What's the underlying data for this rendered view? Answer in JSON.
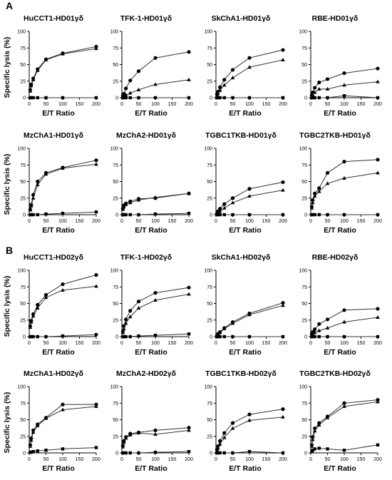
{
  "figure": {
    "panel_labels": [
      "A",
      "B"
    ],
    "x_axis_label": "E/T Ratio",
    "y_axis_label": "Specific lysis (%)"
  },
  "chart_data": [
    {
      "type": "line",
      "title": "HuCCT1-HD01γδ",
      "xlabel": "E/T Ratio",
      "ylabel": "Specific lysis (%)",
      "xlim": [
        0,
        200
      ],
      "ylim": [
        0,
        100
      ],
      "xticks": [
        0,
        50,
        100,
        150,
        200
      ],
      "yticks": [
        0,
        25,
        50,
        75,
        100
      ],
      "x": [
        3,
        6,
        12,
        25,
        50,
        100,
        200
      ],
      "series": [
        {
          "marker": "circle",
          "values": [
            12,
            20,
            29,
            43,
            58,
            67,
            77
          ]
        },
        {
          "marker": "triangle",
          "values": [
            10,
            18,
            27,
            41,
            57,
            66,
            74
          ]
        },
        {
          "marker": "square",
          "values": [
            0,
            0,
            0,
            0,
            0,
            0,
            0
          ]
        }
      ]
    },
    {
      "type": "line",
      "title": "TFK-1-HD01γδ",
      "xlabel": "E/T Ratio",
      "ylabel": "",
      "xlim": [
        0,
        200
      ],
      "ylim": [
        0,
        100
      ],
      "xticks": [
        0,
        50,
        100,
        150,
        200
      ],
      "yticks": [
        0,
        25,
        50,
        75,
        100
      ],
      "x": [
        3,
        6,
        12,
        25,
        50,
        100,
        200
      ],
      "series": [
        {
          "marker": "circle",
          "values": [
            3,
            6,
            14,
            26,
            40,
            60,
            69
          ]
        },
        {
          "marker": "triangle",
          "values": [
            1,
            2,
            4,
            7,
            12,
            20,
            27
          ]
        },
        {
          "marker": "square",
          "values": [
            0,
            0,
            0,
            0,
            0,
            0,
            0
          ]
        }
      ]
    },
    {
      "type": "line",
      "title": "SkChA1-HD01γδ",
      "xlabel": "E/T Ratio",
      "ylabel": "",
      "xlim": [
        0,
        200
      ],
      "ylim": [
        0,
        100
      ],
      "xticks": [
        0,
        50,
        100,
        150,
        200
      ],
      "yticks": [
        0,
        25,
        50,
        75,
        100
      ],
      "x": [
        3,
        6,
        12,
        25,
        50,
        100,
        200
      ],
      "series": [
        {
          "marker": "circle",
          "values": [
            5,
            9,
            16,
            27,
            42,
            60,
            72
          ]
        },
        {
          "marker": "triangle",
          "values": [
            3,
            6,
            11,
            19,
            30,
            46,
            57
          ]
        },
        {
          "marker": "square",
          "values": [
            0,
            0,
            0,
            0,
            0,
            0,
            0
          ]
        }
      ]
    },
    {
      "type": "line",
      "title": "RBE-HD01γδ",
      "xlabel": "E/T Ratio",
      "ylabel": "",
      "xlim": [
        0,
        200
      ],
      "ylim": [
        0,
        100
      ],
      "xticks": [
        0,
        50,
        100,
        150,
        200
      ],
      "yticks": [
        0,
        25,
        50,
        75,
        100
      ],
      "x": [
        3,
        6,
        12,
        25,
        50,
        100,
        200
      ],
      "series": [
        {
          "marker": "circle",
          "values": [
            4,
            8,
            15,
            23,
            28,
            37,
            44
          ]
        },
        {
          "marker": "triangle",
          "values": [
            2,
            4,
            8,
            13,
            13,
            19,
            24
          ]
        },
        {
          "marker": "square",
          "values": [
            0,
            0,
            0,
            0,
            0,
            3,
            0
          ]
        }
      ]
    },
    {
      "type": "line",
      "title": "MzChA1-HD01γδ",
      "xlabel": "E/T Ratio",
      "ylabel": "Specific lysis (%)",
      "xlim": [
        0,
        200
      ],
      "ylim": [
        0,
        100
      ],
      "xticks": [
        0,
        50,
        100,
        150,
        200
      ],
      "yticks": [
        0,
        25,
        50,
        75,
        100
      ],
      "x": [
        3,
        6,
        12,
        25,
        50,
        100,
        200
      ],
      "series": [
        {
          "marker": "circle",
          "values": [
            8,
            15,
            30,
            50,
            63,
            71,
            82
          ]
        },
        {
          "marker": "triangle",
          "values": [
            7,
            13,
            25,
            45,
            61,
            70,
            76
          ]
        },
        {
          "marker": "square",
          "values": [
            0,
            0,
            0,
            0,
            1,
            2,
            4
          ]
        }
      ]
    },
    {
      "type": "line",
      "title": "MzChA2-HD01γδ",
      "xlabel": "E/T Ratio",
      "ylabel": "",
      "xlim": [
        0,
        200
      ],
      "ylim": [
        0,
        100
      ],
      "xticks": [
        0,
        50,
        100,
        150,
        200
      ],
      "yticks": [
        0,
        25,
        50,
        75,
        100
      ],
      "x": [
        3,
        6,
        12,
        25,
        50,
        100,
        200
      ],
      "series": [
        {
          "marker": "circle",
          "values": [
            9,
            14,
            17,
            20,
            24,
            25,
            32
          ]
        },
        {
          "marker": "triangle",
          "values": [
            8,
            12,
            15,
            18,
            22,
            26,
            32
          ]
        },
        {
          "marker": "square",
          "values": [
            0,
            0,
            0,
            0,
            0,
            1,
            2
          ]
        }
      ]
    },
    {
      "type": "line",
      "title": "TGBC1TKB-HD01γδ",
      "xlabel": "E/T Ratio",
      "ylabel": "",
      "xlim": [
        0,
        200
      ],
      "ylim": [
        0,
        100
      ],
      "xticks": [
        0,
        50,
        100,
        150,
        200
      ],
      "yticks": [
        0,
        25,
        50,
        75,
        100
      ],
      "x": [
        3,
        6,
        12,
        25,
        50,
        100,
        200
      ],
      "series": [
        {
          "marker": "circle",
          "values": [
            2,
            5,
            9,
            16,
            25,
            39,
            49
          ]
        },
        {
          "marker": "triangle",
          "values": [
            1,
            3,
            5,
            10,
            18,
            28,
            37
          ]
        },
        {
          "marker": "square",
          "values": [
            0,
            0,
            0,
            0,
            0,
            0,
            0
          ]
        }
      ]
    },
    {
      "type": "line",
      "title": "TGBC2TKB-HD01γδ",
      "xlabel": "E/T Ratio",
      "ylabel": "",
      "xlim": [
        0,
        200
      ],
      "ylim": [
        0,
        100
      ],
      "xticks": [
        0,
        50,
        100,
        150,
        200
      ],
      "yticks": [
        0,
        25,
        50,
        75,
        100
      ],
      "x": [
        3,
        6,
        12,
        25,
        50,
        100,
        200
      ],
      "series": [
        {
          "marker": "circle",
          "values": [
            12,
            22,
            32,
            40,
            63,
            80,
            83
          ]
        },
        {
          "marker": "triangle",
          "values": [
            10,
            18,
            28,
            35,
            47,
            55,
            63
          ]
        },
        {
          "marker": "square",
          "values": [
            0,
            0,
            0,
            0,
            0,
            0,
            0
          ]
        }
      ]
    },
    {
      "type": "line",
      "title": "HuCCT1-HD02γδ",
      "xlabel": "E/T Ratio",
      "ylabel": "Specific lysis (%)",
      "xlim": [
        0,
        200
      ],
      "ylim": [
        0,
        100
      ],
      "xticks": [
        0,
        50,
        100,
        150,
        200
      ],
      "yticks": [
        0,
        25,
        50,
        75,
        100
      ],
      "x": [
        3,
        6,
        12,
        25,
        50,
        100,
        200
      ],
      "series": [
        {
          "marker": "circle",
          "values": [
            16,
            24,
            34,
            48,
            63,
            79,
            93
          ]
        },
        {
          "marker": "triangle",
          "values": [
            14,
            22,
            31,
            43,
            59,
            70,
            76
          ]
        },
        {
          "marker": "square",
          "values": [
            0,
            0,
            0,
            0,
            0,
            1,
            3
          ]
        }
      ]
    },
    {
      "type": "line",
      "title": "TFK-1-HD02γδ",
      "xlabel": "E/T Ratio",
      "ylabel": "",
      "xlim": [
        0,
        200
      ],
      "ylim": [
        0,
        100
      ],
      "xticks": [
        0,
        50,
        100,
        150,
        200
      ],
      "yticks": [
        0,
        25,
        50,
        75,
        100
      ],
      "x": [
        3,
        6,
        12,
        25,
        50,
        100,
        200
      ],
      "series": [
        {
          "marker": "circle",
          "values": [
            8,
            16,
            26,
            39,
            53,
            66,
            74
          ]
        },
        {
          "marker": "triangle",
          "values": [
            6,
            12,
            20,
            30,
            43,
            55,
            64
          ]
        },
        {
          "marker": "square",
          "values": [
            0,
            0,
            0,
            0,
            1,
            2,
            4
          ]
        }
      ]
    },
    {
      "type": "line",
      "title": "SkChA1-HD02γδ",
      "xlabel": "E/T Ratio",
      "ylabel": "",
      "xlim": [
        0,
        200
      ],
      "ylim": [
        0,
        100
      ],
      "xticks": [
        0,
        50,
        100,
        150,
        200
      ],
      "yticks": [
        0,
        25,
        50,
        75,
        100
      ],
      "x": [
        3,
        6,
        12,
        25,
        50,
        100,
        200
      ],
      "series": [
        {
          "marker": "circle",
          "values": [
            2,
            4,
            7,
            13,
            22,
            35,
            51
          ]
        },
        {
          "marker": "triangle",
          "values": [
            1,
            3,
            6,
            12,
            20,
            33,
            47
          ]
        },
        {
          "marker": "square",
          "values": [
            0,
            0,
            0,
            0,
            0,
            0,
            0
          ]
        }
      ]
    },
    {
      "type": "line",
      "title": "RBE-HD02γδ",
      "xlabel": "E/T Ratio",
      "ylabel": "",
      "xlim": [
        0,
        200
      ],
      "ylim": [
        0,
        100
      ],
      "xticks": [
        0,
        50,
        100,
        150,
        200
      ],
      "yticks": [
        0,
        25,
        50,
        75,
        100
      ],
      "x": [
        3,
        6,
        12,
        25,
        50,
        100,
        200
      ],
      "series": [
        {
          "marker": "circle",
          "values": [
            4,
            7,
            11,
            19,
            26,
            40,
            42
          ]
        },
        {
          "marker": "triangle",
          "values": [
            2,
            4,
            6,
            9,
            13,
            22,
            29
          ]
        },
        {
          "marker": "square",
          "values": [
            0,
            0,
            0,
            0,
            0,
            0,
            0
          ]
        }
      ]
    },
    {
      "type": "line",
      "title": "MzChA1-HD02γδ",
      "xlabel": "E/T Ratio",
      "ylabel": "Specific lysis (%)",
      "xlim": [
        0,
        200
      ],
      "ylim": [
        0,
        100
      ],
      "xticks": [
        0,
        50,
        100,
        150,
        200
      ],
      "yticks": [
        0,
        25,
        50,
        75,
        100
      ],
      "x": [
        3,
        6,
        12,
        25,
        50,
        100,
        200
      ],
      "series": [
        {
          "marker": "circle",
          "values": [
            12,
            22,
            34,
            43,
            53,
            73,
            73
          ]
        },
        {
          "marker": "triangle",
          "values": [
            10,
            19,
            31,
            41,
            52,
            65,
            70
          ]
        },
        {
          "marker": "square",
          "values": [
            1,
            1,
            2,
            3,
            4,
            6,
            8
          ]
        }
      ]
    },
    {
      "type": "line",
      "title": "MzChA2-HD02γδ",
      "xlabel": "E/T Ratio",
      "ylabel": "",
      "xlim": [
        0,
        200
      ],
      "ylim": [
        0,
        100
      ],
      "xticks": [
        0,
        50,
        100,
        150,
        200
      ],
      "yticks": [
        0,
        25,
        50,
        75,
        100
      ],
      "x": [
        3,
        6,
        12,
        25,
        50,
        100,
        200
      ],
      "series": [
        {
          "marker": "circle",
          "values": [
            11,
            18,
            24,
            29,
            31,
            34,
            38
          ]
        },
        {
          "marker": "triangle",
          "values": [
            9,
            16,
            22,
            27,
            30,
            28,
            34
          ]
        },
        {
          "marker": "square",
          "values": [
            0,
            0,
            0,
            0,
            0,
            1,
            2
          ]
        }
      ]
    },
    {
      "type": "line",
      "title": "TGBC1TKB-HD02γδ",
      "xlabel": "E/T Ratio",
      "ylabel": "",
      "xlim": [
        0,
        200
      ],
      "ylim": [
        0,
        100
      ],
      "xticks": [
        0,
        50,
        100,
        150,
        200
      ],
      "yticks": [
        0,
        25,
        50,
        75,
        100
      ],
      "x": [
        3,
        6,
        12,
        25,
        50,
        100,
        200
      ],
      "series": [
        {
          "marker": "circle",
          "values": [
            5,
            10,
            18,
            30,
            45,
            58,
            66
          ]
        },
        {
          "marker": "triangle",
          "values": [
            3,
            7,
            13,
            23,
            37,
            49,
            54
          ]
        },
        {
          "marker": "square",
          "values": [
            0,
            0,
            0,
            0,
            0,
            2,
            0
          ]
        }
      ]
    },
    {
      "type": "line",
      "title": "TGBC2TKB-HD02γδ",
      "xlabel": "E/T Ratio",
      "ylabel": "",
      "xlim": [
        0,
        200
      ],
      "ylim": [
        0,
        100
      ],
      "xticks": [
        0,
        50,
        100,
        150,
        200
      ],
      "yticks": [
        0,
        25,
        50,
        75,
        100
      ],
      "x": [
        3,
        6,
        12,
        25,
        50,
        100,
        200
      ],
      "series": [
        {
          "marker": "circle",
          "values": [
            12,
            24,
            37,
            45,
            55,
            75,
            80
          ]
        },
        {
          "marker": "triangle",
          "values": [
            10,
            20,
            33,
            42,
            53,
            70,
            77
          ]
        },
        {
          "marker": "square",
          "values": [
            2,
            4,
            6,
            7,
            6,
            4,
            12
          ]
        }
      ]
    }
  ]
}
